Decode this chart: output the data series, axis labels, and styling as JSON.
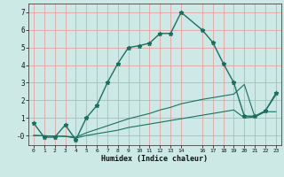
{
  "title": "",
  "xlabel": "Humidex (Indice chaleur)",
  "background_color": "#cce9e5",
  "grid_color": "#e8a0a0",
  "line_color": "#1a7060",
  "xlim": [
    -0.5,
    23.5
  ],
  "ylim": [
    -0.55,
    7.5
  ],
  "xtick_vals": [
    0,
    1,
    2,
    3,
    4,
    5,
    6,
    7,
    8,
    9,
    10,
    11,
    12,
    13,
    14,
    16,
    17,
    18,
    19,
    20,
    21,
    22,
    23
  ],
  "xtick_labels": [
    "0",
    "1",
    "2",
    "3",
    "4",
    "5",
    "6",
    "7",
    "8",
    "9",
    "10",
    "11",
    "12",
    "13",
    "14",
    "16",
    "17",
    "18",
    "19",
    "20",
    "21",
    "22",
    "23"
  ],
  "ytick_vals": [
    0,
    1,
    2,
    3,
    4,
    5,
    6,
    7
  ],
  "ytick_labels": [
    "-0",
    "1",
    "2",
    "3",
    "4",
    "5",
    "6",
    "7"
  ],
  "series1_x": [
    0,
    1,
    2,
    3,
    4,
    5,
    6,
    7,
    8,
    9,
    10,
    11,
    12,
    13,
    14,
    16,
    17,
    18,
    19,
    20,
    21,
    22,
    23
  ],
  "series1_y": [
    0.7,
    -0.1,
    -0.1,
    0.6,
    -0.25,
    1.0,
    1.7,
    3.0,
    4.1,
    5.0,
    5.1,
    5.25,
    5.8,
    5.8,
    7.0,
    6.0,
    5.3,
    4.1,
    3.0,
    1.1,
    1.1,
    1.4,
    2.4
  ],
  "series2_x": [
    0,
    3,
    4,
    5,
    6,
    7,
    8,
    9,
    10,
    11,
    12,
    13,
    14,
    16,
    17,
    18,
    19,
    20,
    21,
    22,
    23
  ],
  "series2_y": [
    0.0,
    -0.05,
    -0.1,
    0.15,
    0.35,
    0.55,
    0.75,
    0.95,
    1.1,
    1.25,
    1.45,
    1.6,
    1.8,
    2.05,
    2.15,
    2.25,
    2.35,
    2.9,
    1.05,
    1.4,
    2.3
  ],
  "series3_x": [
    0,
    3,
    4,
    5,
    6,
    7,
    8,
    9,
    10,
    11,
    12,
    13,
    14,
    16,
    17,
    18,
    19,
    20,
    21,
    22,
    23
  ],
  "series3_y": [
    0.0,
    -0.05,
    -0.15,
    0.0,
    0.1,
    0.2,
    0.3,
    0.45,
    0.55,
    0.65,
    0.75,
    0.85,
    0.95,
    1.15,
    1.25,
    1.35,
    1.45,
    1.0,
    1.05,
    1.35,
    1.35
  ]
}
